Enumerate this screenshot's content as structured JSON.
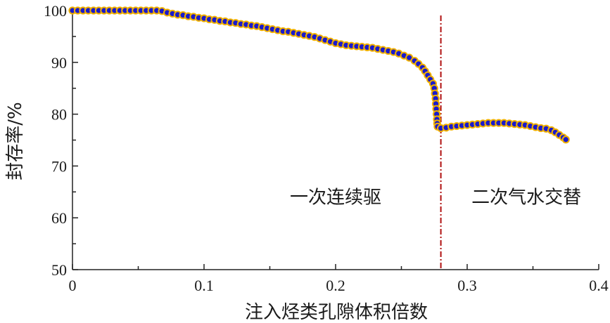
{
  "chart_data": {
    "type": "scatter",
    "xlabel": "注入烃类孔隙体积倍数",
    "ylabel": "封存率/%",
    "xlim": [
      0,
      0.4
    ],
    "ylim": [
      50,
      100
    ],
    "xticks": [
      "0",
      "0.1",
      "0.2",
      "0.3",
      "0.4"
    ],
    "yticks": [
      "50",
      "60",
      "70",
      "80",
      "90",
      "100"
    ],
    "grid": false,
    "marker": {
      "fill": "#1a1acc",
      "edge": "#f0b000",
      "edge_alt": "#f5b800"
    },
    "divider": {
      "x": 0.28,
      "color": "#b01010",
      "style": "dash-dot"
    },
    "annotations": [
      {
        "text": "一次连续驱",
        "x": 0.2,
        "y": 64
      },
      {
        "text": "二次气水交替",
        "x": 0.345,
        "y": 64
      }
    ],
    "series": [
      {
        "points": [
          [
            0.0,
            100.0
          ],
          [
            0.004,
            100.0
          ],
          [
            0.008,
            100.0
          ],
          [
            0.012,
            100.0
          ],
          [
            0.016,
            100.0
          ],
          [
            0.02,
            100.0
          ],
          [
            0.024,
            100.0
          ],
          [
            0.028,
            100.0
          ],
          [
            0.032,
            100.0
          ],
          [
            0.036,
            100.0
          ],
          [
            0.04,
            100.0
          ],
          [
            0.044,
            100.0
          ],
          [
            0.048,
            100.0
          ],
          [
            0.052,
            100.0
          ],
          [
            0.056,
            100.0
          ],
          [
            0.06,
            100.0
          ],
          [
            0.064,
            100.0
          ],
          [
            0.068,
            99.9
          ],
          [
            0.072,
            99.6
          ],
          [
            0.076,
            99.4
          ],
          [
            0.08,
            99.2
          ],
          [
            0.084,
            99.1
          ],
          [
            0.088,
            98.9
          ],
          [
            0.092,
            98.8
          ],
          [
            0.096,
            98.6
          ],
          [
            0.1,
            98.5
          ],
          [
            0.104,
            98.3
          ],
          [
            0.108,
            98.2
          ],
          [
            0.112,
            98.0
          ],
          [
            0.116,
            97.9
          ],
          [
            0.12,
            97.7
          ],
          [
            0.124,
            97.6
          ],
          [
            0.128,
            97.4
          ],
          [
            0.132,
            97.3
          ],
          [
            0.136,
            97.1
          ],
          [
            0.14,
            97.0
          ],
          [
            0.144,
            96.8
          ],
          [
            0.148,
            96.6
          ],
          [
            0.152,
            96.4
          ],
          [
            0.156,
            96.2
          ],
          [
            0.16,
            96.0
          ],
          [
            0.164,
            95.9
          ],
          [
            0.168,
            95.7
          ],
          [
            0.172,
            95.5
          ],
          [
            0.176,
            95.3
          ],
          [
            0.18,
            95.1
          ],
          [
            0.184,
            94.9
          ],
          [
            0.188,
            94.6
          ],
          [
            0.192,
            94.3
          ],
          [
            0.196,
            94.0
          ],
          [
            0.2,
            93.7
          ],
          [
            0.204,
            93.5
          ],
          [
            0.208,
            93.3
          ],
          [
            0.212,
            93.2
          ],
          [
            0.216,
            93.1
          ],
          [
            0.22,
            93.0
          ],
          [
            0.224,
            92.9
          ],
          [
            0.228,
            92.8
          ],
          [
            0.232,
            92.6
          ],
          [
            0.236,
            92.4
          ],
          [
            0.24,
            92.2
          ],
          [
            0.244,
            92.0
          ],
          [
            0.248,
            91.7
          ],
          [
            0.252,
            91.3
          ],
          [
            0.256,
            90.9
          ],
          [
            0.26,
            90.3
          ],
          [
            0.263,
            89.7
          ],
          [
            0.266,
            89.0
          ],
          [
            0.268,
            88.3
          ],
          [
            0.27,
            87.5
          ],
          [
            0.272,
            86.7
          ],
          [
            0.274,
            85.9
          ],
          [
            0.275,
            85.0
          ],
          [
            0.2755,
            84.0
          ],
          [
            0.276,
            83.0
          ],
          [
            0.2762,
            82.0
          ],
          [
            0.2765,
            81.0
          ],
          [
            0.2768,
            80.0
          ],
          [
            0.277,
            79.0
          ],
          [
            0.2772,
            78.2
          ],
          [
            0.2775,
            77.6
          ],
          [
            0.28,
            77.3
          ],
          [
            0.284,
            77.4
          ],
          [
            0.288,
            77.6
          ],
          [
            0.292,
            77.7
          ],
          [
            0.296,
            77.8
          ],
          [
            0.3,
            77.9
          ],
          [
            0.304,
            78.0
          ],
          [
            0.308,
            78.1
          ],
          [
            0.312,
            78.2
          ],
          [
            0.316,
            78.3
          ],
          [
            0.32,
            78.3
          ],
          [
            0.324,
            78.3
          ],
          [
            0.328,
            78.3
          ],
          [
            0.332,
            78.2
          ],
          [
            0.336,
            78.1
          ],
          [
            0.34,
            78.0
          ],
          [
            0.344,
            77.9
          ],
          [
            0.348,
            77.7
          ],
          [
            0.352,
            77.5
          ],
          [
            0.356,
            77.3
          ],
          [
            0.36,
            77.2
          ],
          [
            0.364,
            76.9
          ],
          [
            0.367,
            76.5
          ],
          [
            0.37,
            76.0
          ],
          [
            0.373,
            75.5
          ],
          [
            0.375,
            75.1
          ]
        ]
      }
    ]
  }
}
